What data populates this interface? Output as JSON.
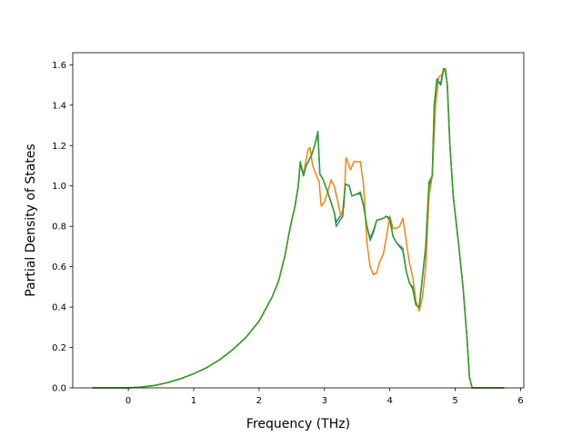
{
  "chart_data": {
    "type": "line",
    "title": "",
    "xlabel": "Frequency (THz)",
    "ylabel": "Partial Density of States",
    "xlim": [
      -0.85,
      6.05
    ],
    "ylim": [
      0.0,
      1.66
    ],
    "xticks": [
      0,
      1,
      2,
      3,
      4,
      5,
      6
    ],
    "xtick_labels": [
      "0",
      "1",
      "2",
      "3",
      "4",
      "5",
      "6"
    ],
    "yticks": [
      0.0,
      0.2,
      0.4,
      0.6,
      0.8,
      1.0,
      1.2,
      1.4,
      1.6
    ],
    "ytick_labels": [
      "0.0",
      "0.2",
      "0.4",
      "0.6",
      "0.8",
      "1.0",
      "1.2",
      "1.4",
      "1.6"
    ],
    "grid": false,
    "legend": false,
    "series": [
      {
        "color": "#1f77b4",
        "points": [
          [
            -0.55,
            0.0
          ],
          [
            0.0,
            0.0
          ],
          [
            0.2,
            0.004
          ],
          [
            0.4,
            0.012
          ],
          [
            0.6,
            0.026
          ],
          [
            0.8,
            0.045
          ],
          [
            1.0,
            0.07
          ],
          [
            1.2,
            0.1
          ],
          [
            1.4,
            0.14
          ],
          [
            1.6,
            0.19
          ],
          [
            1.8,
            0.25
          ],
          [
            2.0,
            0.33
          ],
          [
            2.2,
            0.45
          ],
          [
            2.3,
            0.53
          ],
          [
            2.4,
            0.66
          ],
          [
            2.45,
            0.75
          ],
          [
            2.5,
            0.83
          ],
          [
            2.55,
            0.9
          ],
          [
            2.6,
            1.0
          ],
          [
            2.63,
            1.11
          ],
          [
            2.68,
            1.05
          ],
          [
            2.72,
            1.1
          ],
          [
            2.8,
            1.15
          ],
          [
            2.85,
            1.2
          ],
          [
            2.9,
            1.26
          ],
          [
            2.93,
            1.06
          ],
          [
            2.98,
            1.03
          ],
          [
            3.05,
            0.97
          ],
          [
            3.1,
            0.92
          ],
          [
            3.15,
            0.87
          ],
          [
            3.18,
            0.82
          ],
          [
            3.22,
            0.84
          ],
          [
            3.28,
            0.87
          ],
          [
            3.32,
            1.01
          ],
          [
            3.38,
            1.0
          ],
          [
            3.42,
            0.95
          ],
          [
            3.5,
            0.96
          ],
          [
            3.55,
            0.96
          ],
          [
            3.6,
            0.9
          ],
          [
            3.65,
            0.8
          ],
          [
            3.7,
            0.74
          ],
          [
            3.75,
            0.78
          ],
          [
            3.8,
            0.83
          ],
          [
            3.9,
            0.84
          ],
          [
            3.95,
            0.85
          ],
          [
            4.0,
            0.83
          ],
          [
            4.05,
            0.75
          ],
          [
            4.1,
            0.72
          ],
          [
            4.2,
            0.68
          ],
          [
            4.25,
            0.58
          ],
          [
            4.3,
            0.52
          ],
          [
            4.35,
            0.49
          ],
          [
            4.4,
            0.41
          ],
          [
            4.45,
            0.4
          ],
          [
            4.5,
            0.55
          ],
          [
            4.55,
            0.7
          ],
          [
            4.6,
            1.0
          ],
          [
            4.65,
            1.05
          ],
          [
            4.68,
            1.4
          ],
          [
            4.72,
            1.53
          ],
          [
            4.78,
            1.5
          ],
          [
            4.82,
            1.57
          ],
          [
            4.85,
            1.58
          ],
          [
            4.88,
            1.5
          ],
          [
            4.92,
            1.2
          ],
          [
            4.97,
            0.95
          ],
          [
            5.05,
            0.72
          ],
          [
            5.12,
            0.5
          ],
          [
            5.18,
            0.25
          ],
          [
            5.22,
            0.05
          ],
          [
            5.26,
            0.0
          ],
          [
            5.75,
            0.0
          ]
        ]
      },
      {
        "color": "#ff7f0e",
        "points": [
          [
            -0.55,
            0.0
          ],
          [
            0.0,
            0.0
          ],
          [
            0.2,
            0.004
          ],
          [
            0.4,
            0.012
          ],
          [
            0.6,
            0.026
          ],
          [
            0.8,
            0.045
          ],
          [
            1.0,
            0.07
          ],
          [
            1.2,
            0.1
          ],
          [
            1.4,
            0.14
          ],
          [
            1.6,
            0.19
          ],
          [
            1.8,
            0.25
          ],
          [
            2.0,
            0.33
          ],
          [
            2.2,
            0.45
          ],
          [
            2.3,
            0.53
          ],
          [
            2.4,
            0.66
          ],
          [
            2.45,
            0.75
          ],
          [
            2.5,
            0.83
          ],
          [
            2.55,
            0.9
          ],
          [
            2.6,
            1.0
          ],
          [
            2.63,
            1.12
          ],
          [
            2.68,
            1.06
          ],
          [
            2.75,
            1.18
          ],
          [
            2.78,
            1.19
          ],
          [
            2.82,
            1.1
          ],
          [
            2.88,
            1.05
          ],
          [
            2.92,
            1.02
          ],
          [
            2.95,
            0.9
          ],
          [
            3.0,
            0.92
          ],
          [
            3.05,
            0.97
          ],
          [
            3.1,
            1.03
          ],
          [
            3.15,
            1.0
          ],
          [
            3.2,
            0.93
          ],
          [
            3.25,
            0.85
          ],
          [
            3.3,
            0.9
          ],
          [
            3.33,
            1.14
          ],
          [
            3.4,
            1.08
          ],
          [
            3.45,
            1.12
          ],
          [
            3.55,
            1.12
          ],
          [
            3.6,
            1.0
          ],
          [
            3.65,
            0.72
          ],
          [
            3.7,
            0.6
          ],
          [
            3.75,
            0.56
          ],
          [
            3.8,
            0.57
          ],
          [
            3.85,
            0.63
          ],
          [
            3.9,
            0.66
          ],
          [
            3.95,
            0.75
          ],
          [
            4.0,
            0.85
          ],
          [
            4.05,
            0.79
          ],
          [
            4.1,
            0.79
          ],
          [
            4.15,
            0.8
          ],
          [
            4.2,
            0.84
          ],
          [
            4.25,
            0.73
          ],
          [
            4.3,
            0.62
          ],
          [
            4.35,
            0.55
          ],
          [
            4.4,
            0.43
          ],
          [
            4.45,
            0.38
          ],
          [
            4.5,
            0.45
          ],
          [
            4.55,
            0.6
          ],
          [
            4.6,
            0.95
          ],
          [
            4.65,
            1.05
          ],
          [
            4.7,
            1.4
          ],
          [
            4.75,
            1.54
          ],
          [
            4.8,
            1.55
          ],
          [
            4.84,
            1.58
          ],
          [
            4.88,
            1.5
          ],
          [
            4.92,
            1.2
          ],
          [
            4.97,
            0.95
          ],
          [
            5.05,
            0.72
          ],
          [
            5.12,
            0.5
          ],
          [
            5.18,
            0.25
          ],
          [
            5.22,
            0.05
          ],
          [
            5.26,
            0.0
          ],
          [
            5.75,
            0.0
          ]
        ]
      },
      {
        "color": "#2ca02c",
        "points": [
          [
            -0.55,
            0.0
          ],
          [
            0.0,
            0.0
          ],
          [
            0.2,
            0.004
          ],
          [
            0.4,
            0.012
          ],
          [
            0.6,
            0.026
          ],
          [
            0.8,
            0.045
          ],
          [
            1.0,
            0.07
          ],
          [
            1.2,
            0.1
          ],
          [
            1.4,
            0.14
          ],
          [
            1.6,
            0.19
          ],
          [
            1.8,
            0.25
          ],
          [
            2.0,
            0.33
          ],
          [
            2.2,
            0.45
          ],
          [
            2.3,
            0.53
          ],
          [
            2.4,
            0.66
          ],
          [
            2.45,
            0.75
          ],
          [
            2.5,
            0.83
          ],
          [
            2.55,
            0.9
          ],
          [
            2.6,
            1.0
          ],
          [
            2.63,
            1.12
          ],
          [
            2.68,
            1.05
          ],
          [
            2.72,
            1.1
          ],
          [
            2.8,
            1.15
          ],
          [
            2.85,
            1.2
          ],
          [
            2.9,
            1.27
          ],
          [
            2.93,
            1.06
          ],
          [
            2.98,
            1.03
          ],
          [
            3.05,
            0.97
          ],
          [
            3.1,
            0.92
          ],
          [
            3.15,
            0.87
          ],
          [
            3.18,
            0.8
          ],
          [
            3.22,
            0.82
          ],
          [
            3.28,
            0.85
          ],
          [
            3.32,
            1.01
          ],
          [
            3.38,
            1.0
          ],
          [
            3.42,
            0.95
          ],
          [
            3.5,
            0.96
          ],
          [
            3.55,
            0.97
          ],
          [
            3.6,
            0.9
          ],
          [
            3.65,
            0.8
          ],
          [
            3.7,
            0.73
          ],
          [
            3.75,
            0.77
          ],
          [
            3.8,
            0.83
          ],
          [
            3.9,
            0.84
          ],
          [
            3.95,
            0.85
          ],
          [
            4.0,
            0.84
          ],
          [
            4.05,
            0.75
          ],
          [
            4.1,
            0.72
          ],
          [
            4.2,
            0.69
          ],
          [
            4.25,
            0.58
          ],
          [
            4.3,
            0.52
          ],
          [
            4.35,
            0.5
          ],
          [
            4.4,
            0.41
          ],
          [
            4.45,
            0.4
          ],
          [
            4.5,
            0.55
          ],
          [
            4.55,
            0.7
          ],
          [
            4.6,
            1.02
          ],
          [
            4.65,
            1.05
          ],
          [
            4.68,
            1.4
          ],
          [
            4.72,
            1.52
          ],
          [
            4.78,
            1.51
          ],
          [
            4.82,
            1.58
          ],
          [
            4.85,
            1.58
          ],
          [
            4.88,
            1.5
          ],
          [
            4.92,
            1.2
          ],
          [
            4.97,
            0.95
          ],
          [
            5.05,
            0.72
          ],
          [
            5.12,
            0.5
          ],
          [
            5.18,
            0.25
          ],
          [
            5.22,
            0.05
          ],
          [
            5.26,
            0.0
          ],
          [
            5.75,
            0.0
          ]
        ]
      }
    ]
  }
}
